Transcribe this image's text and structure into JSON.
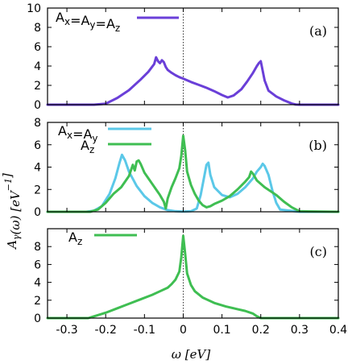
{
  "chart_data": [
    {
      "panel": "(a)",
      "type": "line",
      "xlim": [
        -0.35,
        0.4
      ],
      "ylim": [
        0,
        10
      ],
      "yticks": [
        0,
        2,
        4,
        6,
        8,
        10
      ],
      "series": [
        {
          "name": "Ax=Ay=Az",
          "color": "#6a3fd8",
          "x": [
            -0.35,
            -0.26,
            -0.23,
            -0.2,
            -0.17,
            -0.14,
            -0.11,
            -0.09,
            -0.075,
            -0.07,
            -0.065,
            -0.06,
            -0.055,
            -0.05,
            -0.045,
            -0.04,
            -0.03,
            -0.02,
            -0.01,
            0.0,
            0.02,
            0.04,
            0.06,
            0.08,
            0.1,
            0.115,
            0.13,
            0.15,
            0.165,
            0.18,
            0.19,
            0.195,
            0.2,
            0.205,
            0.21,
            0.22,
            0.24,
            0.26,
            0.28,
            0.29,
            0.3,
            0.4
          ],
          "y": [
            0,
            0,
            0,
            0.1,
            0.7,
            1.5,
            2.6,
            3.4,
            4.2,
            4.9,
            4.5,
            4.3,
            4.6,
            4.4,
            3.9,
            3.6,
            3.3,
            3.05,
            2.85,
            2.7,
            2.35,
            2.05,
            1.75,
            1.4,
            1.0,
            0.75,
            0.95,
            1.6,
            2.4,
            3.3,
            4.0,
            4.3,
            4.5,
            3.5,
            2.5,
            1.45,
            0.85,
            0.45,
            0.12,
            0.02,
            0,
            0
          ]
        }
      ]
    },
    {
      "panel": "(b)",
      "type": "line",
      "xlim": [
        -0.35,
        0.4
      ],
      "ylim": [
        0,
        8
      ],
      "yticks": [
        0,
        2,
        4,
        6,
        8
      ],
      "series": [
        {
          "name": "Ax=Ay",
          "color": "#5bc8e8",
          "x": [
            -0.35,
            -0.25,
            -0.23,
            -0.21,
            -0.19,
            -0.175,
            -0.165,
            -0.158,
            -0.15,
            -0.14,
            -0.12,
            -0.1,
            -0.08,
            -0.06,
            -0.04,
            -0.02,
            0.0,
            0.02,
            0.035,
            0.045,
            0.055,
            0.06,
            0.065,
            0.07,
            0.08,
            0.1,
            0.12,
            0.14,
            0.16,
            0.18,
            0.19,
            0.2,
            0.205,
            0.21,
            0.22,
            0.23,
            0.24,
            0.25,
            0.3,
            0.4
          ],
          "y": [
            0,
            0,
            0.1,
            0.5,
            1.6,
            3.0,
            4.3,
            5.1,
            4.6,
            3.6,
            2.3,
            1.4,
            0.8,
            0.4,
            0.15,
            0.05,
            0.02,
            0.05,
            0.3,
            1.5,
            3.3,
            4.2,
            4.4,
            3.3,
            2.2,
            1.5,
            1.3,
            1.6,
            2.2,
            3.0,
            3.6,
            4.0,
            4.3,
            4.1,
            3.3,
            1.9,
            0.8,
            0.2,
            0,
            0
          ]
        },
        {
          "name": "Az",
          "color": "#3fbe52",
          "x": [
            -0.35,
            -0.24,
            -0.22,
            -0.2,
            -0.18,
            -0.16,
            -0.14,
            -0.13,
            -0.125,
            -0.12,
            -0.115,
            -0.11,
            -0.1,
            -0.09,
            -0.08,
            -0.07,
            -0.06,
            -0.05,
            -0.045,
            -0.04,
            -0.03,
            -0.02,
            -0.01,
            -0.005,
            0.0,
            0.005,
            0.01,
            0.02,
            0.03,
            0.04,
            0.05,
            0.06,
            0.07,
            0.08,
            0.1,
            0.12,
            0.14,
            0.16,
            0.17,
            0.175,
            0.18,
            0.19,
            0.21,
            0.24,
            0.26,
            0.28,
            0.3,
            0.4
          ],
          "y": [
            0,
            0,
            0.2,
            0.8,
            1.6,
            2.2,
            3.2,
            4.2,
            3.7,
            4.5,
            4.6,
            4.3,
            3.5,
            3.0,
            2.5,
            2.0,
            1.5,
            0.9,
            0.3,
            1.2,
            2.2,
            3.0,
            3.9,
            5.0,
            6.8,
            5.5,
            3.6,
            2.4,
            1.6,
            1.0,
            0.6,
            0.4,
            0.5,
            0.7,
            1.0,
            1.4,
            2.0,
            2.7,
            3.1,
            3.6,
            3.4,
            2.8,
            2.2,
            1.5,
            0.9,
            0.4,
            0.05,
            0
          ]
        }
      ]
    },
    {
      "panel": "(c)",
      "type": "line",
      "xlim": [
        -0.35,
        0.4
      ],
      "ylim": [
        0,
        10
      ],
      "yticks": [
        0,
        2,
        4,
        6,
        8
      ],
      "series": [
        {
          "name": "Az",
          "color": "#3fbe52",
          "x": [
            -0.35,
            -0.245,
            -0.23,
            -0.2,
            -0.17,
            -0.14,
            -0.11,
            -0.08,
            -0.06,
            -0.04,
            -0.03,
            -0.02,
            -0.01,
            -0.005,
            0.0,
            0.005,
            0.01,
            0.02,
            0.03,
            0.05,
            0.08,
            0.11,
            0.14,
            0.16,
            0.18,
            0.19,
            0.2,
            0.4
          ],
          "y": [
            0,
            0,
            0.2,
            0.6,
            1.1,
            1.6,
            2.1,
            2.6,
            3.0,
            3.4,
            3.8,
            4.3,
            5.2,
            6.8,
            9.2,
            7.2,
            5.0,
            3.7,
            3.0,
            2.3,
            1.7,
            1.3,
            1.0,
            0.8,
            0.5,
            0.2,
            0,
            0
          ]
        }
      ]
    }
  ],
  "axes": {
    "xticks": [
      -0.3,
      -0.2,
      -0.1,
      0,
      0.1,
      0.2,
      0.3,
      0.4
    ],
    "xtick_labels": [
      "-0.3",
      "-0.2",
      "-0.1",
      "0",
      "0.1",
      "0.2",
      "0.3",
      "0.4"
    ],
    "xlabel": "ω [eV]",
    "ylabel": "Aγ(ω) [eV⁻¹]"
  },
  "legends": {
    "a": [
      {
        "label": "Ax=Ay=Az",
        "color": "#6a3fd8"
      }
    ],
    "b": [
      {
        "label": "Ax=Ay",
        "color": "#5bc8e8"
      },
      {
        "label": "Az",
        "color": "#3fbe52"
      }
    ],
    "c": [
      {
        "label": "Az",
        "color": "#3fbe52"
      }
    ]
  },
  "panel_labels": [
    "(a)",
    "(b)",
    "(c)"
  ]
}
